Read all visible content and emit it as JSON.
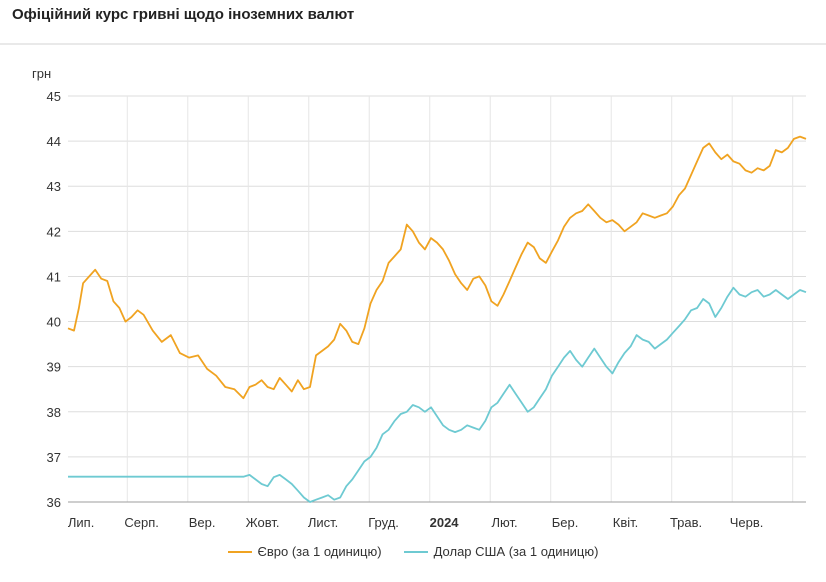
{
  "title": "Офіційний курс гривні щодо іноземних валют",
  "chart_data": {
    "type": "line",
    "ylabel": "грн",
    "ylim": [
      36,
      45
    ],
    "yticks": [
      36,
      37,
      38,
      39,
      40,
      41,
      42,
      43,
      44,
      45
    ],
    "xlim": [
      0,
      12.2
    ],
    "x_labels": [
      {
        "label": "Лип.",
        "x": 0.25,
        "bold": false
      },
      {
        "label": "Серп.",
        "x": 1.25,
        "bold": false
      },
      {
        "label": "Вер.",
        "x": 2.25,
        "bold": false
      },
      {
        "label": "Жовт.",
        "x": 3.25,
        "bold": false
      },
      {
        "label": "Лист.",
        "x": 4.25,
        "bold": false
      },
      {
        "label": "Груд.",
        "x": 5.25,
        "bold": false
      },
      {
        "label": "2024",
        "x": 6.25,
        "bold": true
      },
      {
        "label": "Лют.",
        "x": 7.25,
        "bold": false
      },
      {
        "label": "Бер.",
        "x": 8.25,
        "bold": false
      },
      {
        "label": "Квіт.",
        "x": 9.25,
        "bold": false
      },
      {
        "label": "Трав.",
        "x": 10.25,
        "bold": false
      },
      {
        "label": "Черв.",
        "x": 11.25,
        "bold": false
      }
    ],
    "grid": true,
    "legend_position": "bottom",
    "series": [
      {
        "name": "Євро (за 1 одиницю)",
        "color": "#f0a321",
        "x": [
          0.0,
          0.1,
          0.18,
          0.25,
          0.35,
          0.45,
          0.55,
          0.65,
          0.75,
          0.85,
          0.95,
          1.05,
          1.15,
          1.25,
          1.4,
          1.55,
          1.7,
          1.85,
          2.0,
          2.15,
          2.3,
          2.45,
          2.6,
          2.75,
          2.9,
          3.0,
          3.1,
          3.2,
          3.3,
          3.4,
          3.5,
          3.6,
          3.7,
          3.8,
          3.9,
          4.0,
          4.1,
          4.2,
          4.3,
          4.4,
          4.5,
          4.6,
          4.7,
          4.8,
          4.9,
          5.0,
          5.1,
          5.2,
          5.3,
          5.4,
          5.5,
          5.6,
          5.7,
          5.8,
          5.9,
          6.0,
          6.1,
          6.2,
          6.3,
          6.4,
          6.5,
          6.6,
          6.7,
          6.8,
          6.9,
          7.0,
          7.1,
          7.2,
          7.3,
          7.4,
          7.5,
          7.6,
          7.7,
          7.8,
          7.9,
          8.0,
          8.1,
          8.2,
          8.3,
          8.4,
          8.5,
          8.6,
          8.7,
          8.8,
          8.9,
          9.0,
          9.1,
          9.2,
          9.3,
          9.4,
          9.5,
          9.6,
          9.7,
          9.8,
          9.9,
          10.0,
          10.1,
          10.2,
          10.3,
          10.4,
          10.5,
          10.6,
          10.7,
          10.8,
          10.9,
          11.0,
          11.1,
          11.2,
          11.3,
          11.4,
          11.5,
          11.6,
          11.7,
          11.8,
          11.9,
          12.0,
          12.1,
          12.2
        ],
        "values": [
          39.85,
          39.8,
          40.3,
          40.85,
          41.0,
          41.15,
          40.95,
          40.9,
          40.45,
          40.3,
          40.0,
          40.1,
          40.25,
          40.15,
          39.8,
          39.55,
          39.7,
          39.3,
          39.2,
          39.25,
          38.95,
          38.8,
          38.55,
          38.5,
          38.3,
          38.55,
          38.6,
          38.7,
          38.55,
          38.5,
          38.75,
          38.6,
          38.45,
          38.7,
          38.5,
          38.55,
          39.25,
          39.35,
          39.45,
          39.6,
          39.95,
          39.8,
          39.55,
          39.5,
          39.85,
          40.4,
          40.7,
          40.9,
          41.3,
          41.45,
          41.6,
          42.15,
          42.0,
          41.75,
          41.6,
          41.85,
          41.75,
          41.6,
          41.35,
          41.05,
          40.85,
          40.7,
          40.95,
          41.0,
          40.8,
          40.45,
          40.35,
          40.6,
          40.9,
          41.2,
          41.5,
          41.75,
          41.65,
          41.4,
          41.3,
          41.55,
          41.8,
          42.1,
          42.3,
          42.4,
          42.45,
          42.6,
          42.45,
          42.3,
          42.2,
          42.25,
          42.15,
          42.0,
          42.1,
          42.2,
          42.4,
          42.35,
          42.3,
          42.35,
          42.4,
          42.55,
          42.8,
          42.95,
          43.25,
          43.55,
          43.85,
          43.95,
          43.75,
          43.6,
          43.7,
          43.55,
          43.5,
          43.35,
          43.3,
          43.4,
          43.35,
          43.45,
          43.8,
          43.75,
          43.85,
          44.05,
          44.1,
          44.05
        ],
        "y_offset": -0.01
      },
      {
        "name": "Долар США (за 1 одиницю)",
        "color": "#6ecad2",
        "x": [
          0.0,
          0.5,
          1.0,
          1.5,
          2.0,
          2.5,
          2.9,
          3.0,
          3.1,
          3.2,
          3.3,
          3.4,
          3.5,
          3.6,
          3.7,
          3.8,
          3.9,
          4.0,
          4.1,
          4.2,
          4.3,
          4.4,
          4.5,
          4.6,
          4.7,
          4.8,
          4.9,
          5.0,
          5.1,
          5.2,
          5.3,
          5.4,
          5.5,
          5.6,
          5.7,
          5.8,
          5.9,
          6.0,
          6.1,
          6.2,
          6.3,
          6.4,
          6.5,
          6.6,
          6.7,
          6.8,
          6.9,
          7.0,
          7.1,
          7.2,
          7.3,
          7.4,
          7.5,
          7.6,
          7.7,
          7.8,
          7.9,
          8.0,
          8.1,
          8.2,
          8.3,
          8.4,
          8.5,
          8.6,
          8.7,
          8.8,
          8.9,
          9.0,
          9.1,
          9.2,
          9.3,
          9.4,
          9.5,
          9.6,
          9.7,
          9.8,
          9.9,
          10.0,
          10.1,
          10.2,
          10.3,
          10.4,
          10.5,
          10.6,
          10.7,
          10.8,
          10.9,
          11.0,
          11.1,
          11.2,
          11.3,
          11.4,
          11.5,
          11.6,
          11.7,
          11.8,
          11.9,
          12.0,
          12.1,
          12.2
        ],
        "values": [
          36.56,
          36.56,
          36.56,
          36.56,
          36.56,
          36.56,
          36.56,
          36.6,
          36.5,
          36.4,
          36.35,
          36.55,
          36.6,
          36.5,
          36.4,
          36.25,
          36.1,
          36.0,
          36.05,
          36.1,
          36.15,
          36.05,
          36.1,
          36.35,
          36.5,
          36.7,
          36.9,
          37.0,
          37.2,
          37.5,
          37.6,
          37.8,
          37.95,
          38.0,
          38.15,
          38.1,
          38.0,
          38.1,
          37.9,
          37.7,
          37.6,
          37.55,
          37.6,
          37.7,
          37.65,
          37.6,
          37.8,
          38.1,
          38.2,
          38.4,
          38.6,
          38.4,
          38.2,
          38.0,
          38.1,
          38.3,
          38.5,
          38.8,
          39.0,
          39.2,
          39.35,
          39.15,
          39.0,
          39.2,
          39.4,
          39.2,
          39.0,
          38.85,
          39.1,
          39.3,
          39.45,
          39.7,
          39.6,
          39.55,
          39.4,
          39.5,
          39.6,
          39.75,
          39.9,
          40.05,
          40.25,
          40.3,
          40.5,
          40.4,
          40.1,
          40.3,
          40.55,
          40.75,
          40.6,
          40.55,
          40.65,
          40.7,
          40.55,
          40.6,
          40.7,
          40.6,
          40.5,
          40.6,
          40.7,
          40.65
        ]
      }
    ]
  }
}
